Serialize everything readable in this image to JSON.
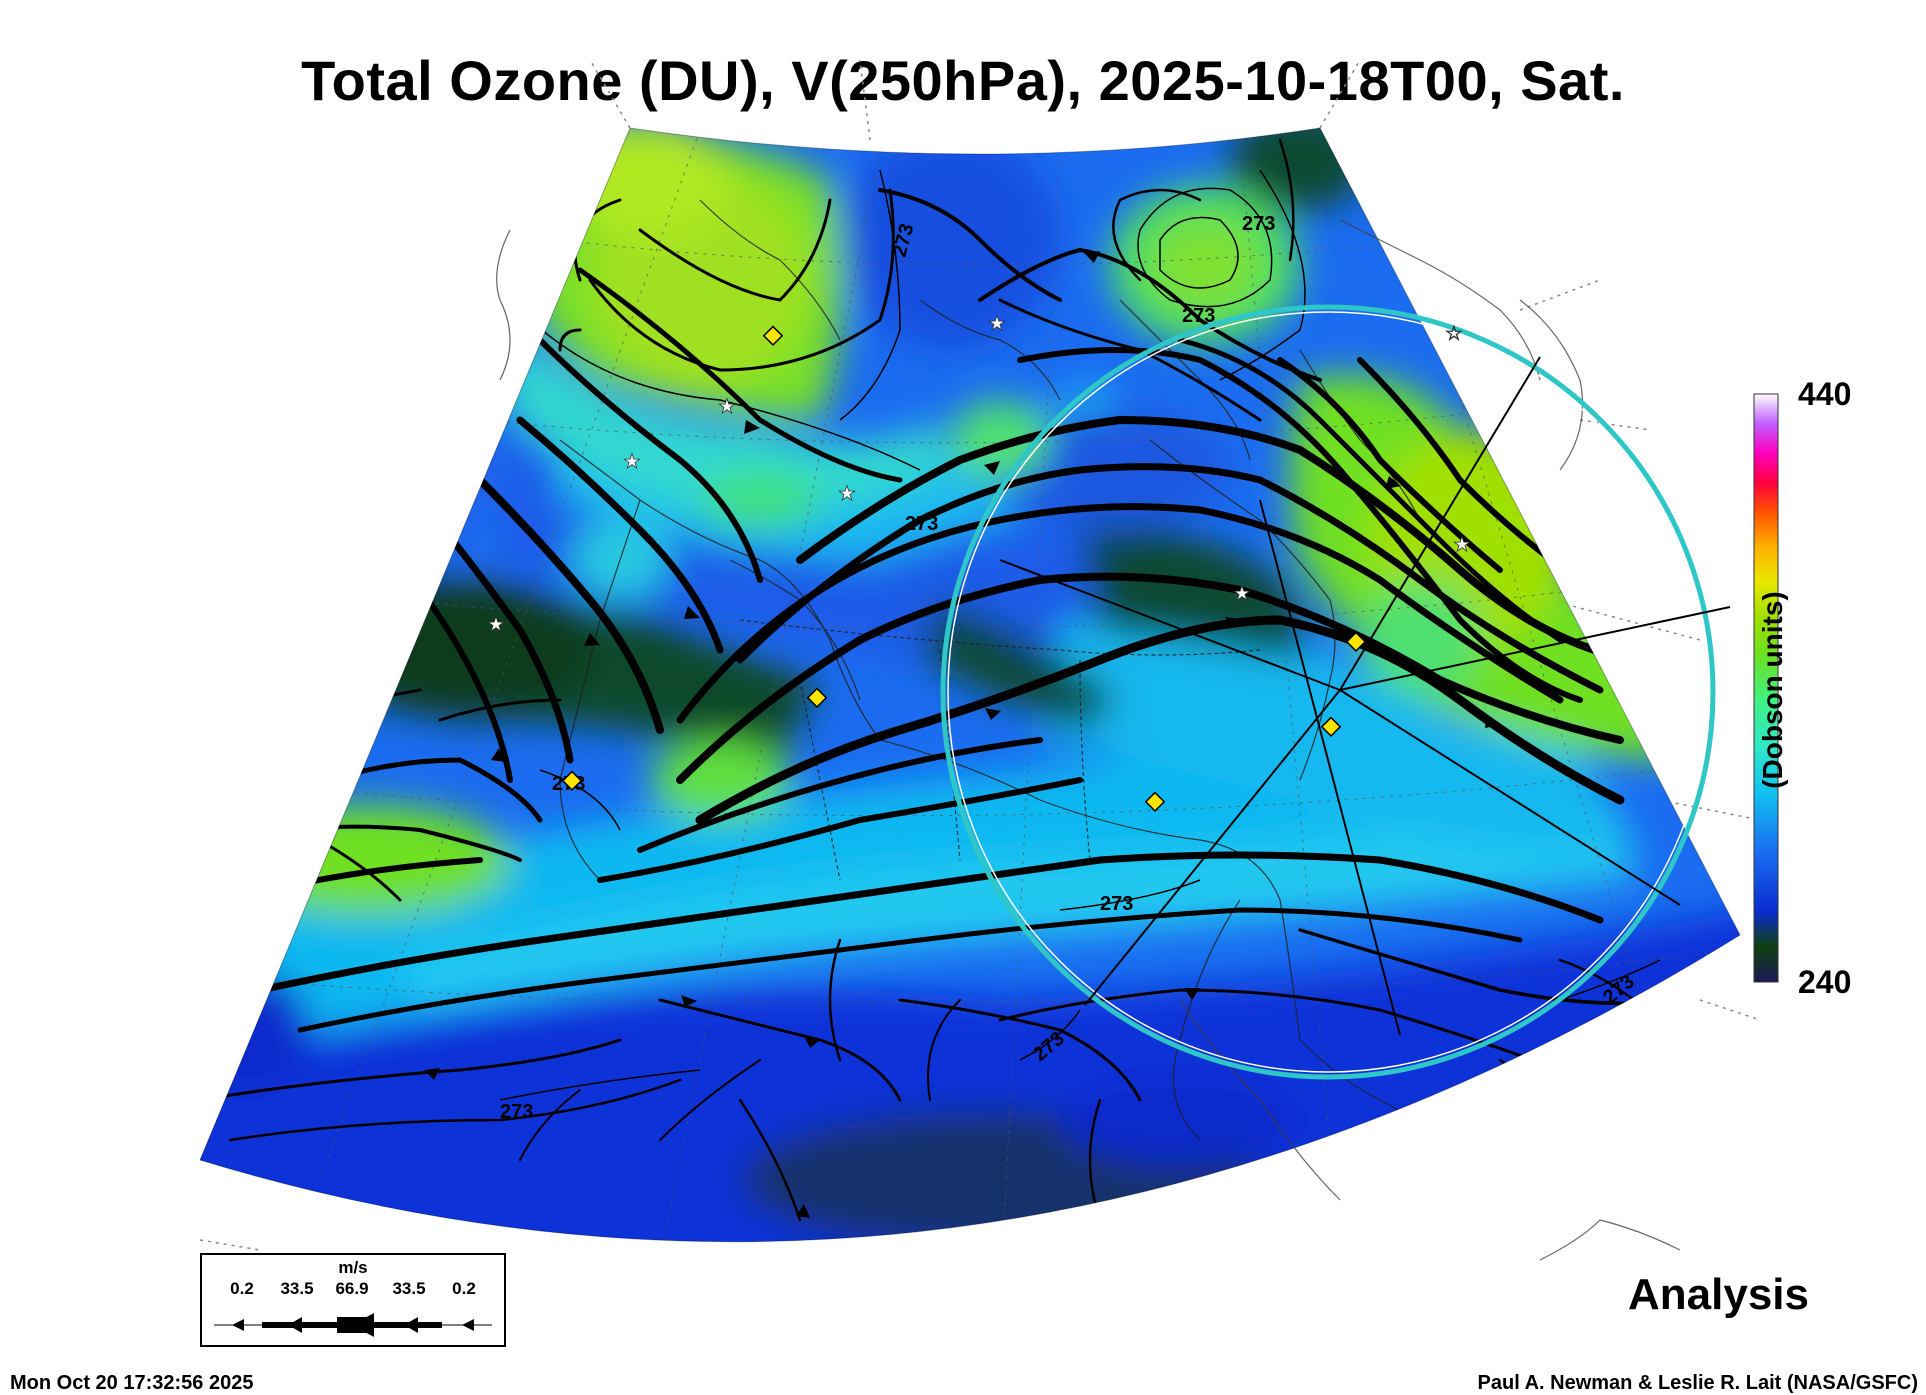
{
  "title": "Total Ozone (DU), V(250hPa), 2025-10-18T00, Sat.",
  "colorbar": {
    "max_label": "440",
    "min_label": "240",
    "units_label": "(Dobson units)",
    "range": [
      240,
      440
    ],
    "colors": [
      "#1a1a55",
      "#104010",
      "#0a2cd0",
      "#1b6cf0",
      "#10c0f0",
      "#30e8c8",
      "#40f080",
      "#70e020",
      "#a0e000",
      "#e8e800",
      "#ffb000",
      "#ff5000",
      "#ff0040",
      "#ff00c0",
      "#c060ff",
      "#f0c8f0",
      "#ffffff"
    ]
  },
  "contour_label": "273",
  "wind_legend": {
    "units": "m/s",
    "values": [
      "0.2",
      "33.5",
      "66.9",
      "33.5",
      "0.2"
    ]
  },
  "product_label": "Analysis",
  "timestamp": "Mon Oct 20 17:32:56 2025",
  "credit": "Paul A. Newman & Leslie R. Lait (NASA/GSFC)"
}
